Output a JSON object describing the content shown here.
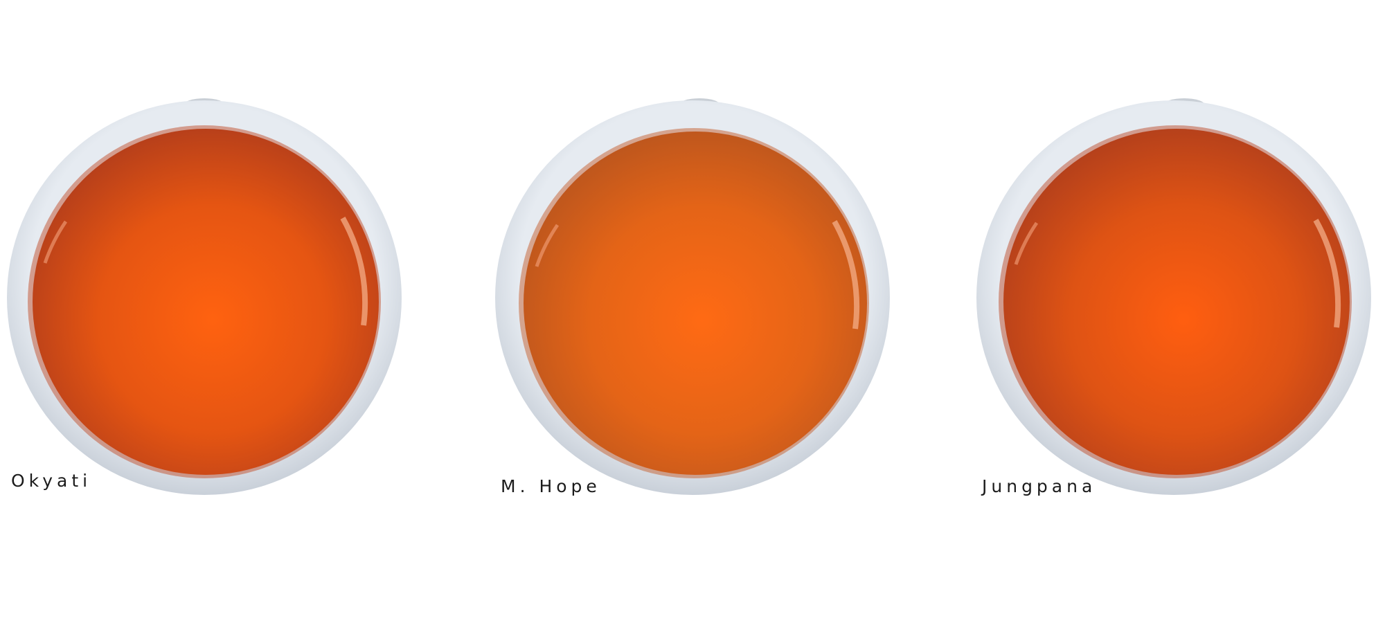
{
  "cups": [
    {
      "name": "Okyati",
      "liquor_center": "#ff6210",
      "liquor_mid": "#e55512",
      "liquor_edge": "#b8401a"
    },
    {
      "name": "M. Hope",
      "liquor_center": "#ff6a14",
      "liquor_mid": "#e46417",
      "liquor_edge": "#bf571d"
    },
    {
      "name": "Jungpana",
      "liquor_center": "#ff5e10",
      "liquor_mid": "#de5314",
      "liquor_edge": "#b6411b"
    }
  ],
  "colors": {
    "background": "#ffffff",
    "cup_rim": "#dde3ea",
    "cup_shadow": "#c6cdd6",
    "label_text": "#1b1b1b"
  }
}
